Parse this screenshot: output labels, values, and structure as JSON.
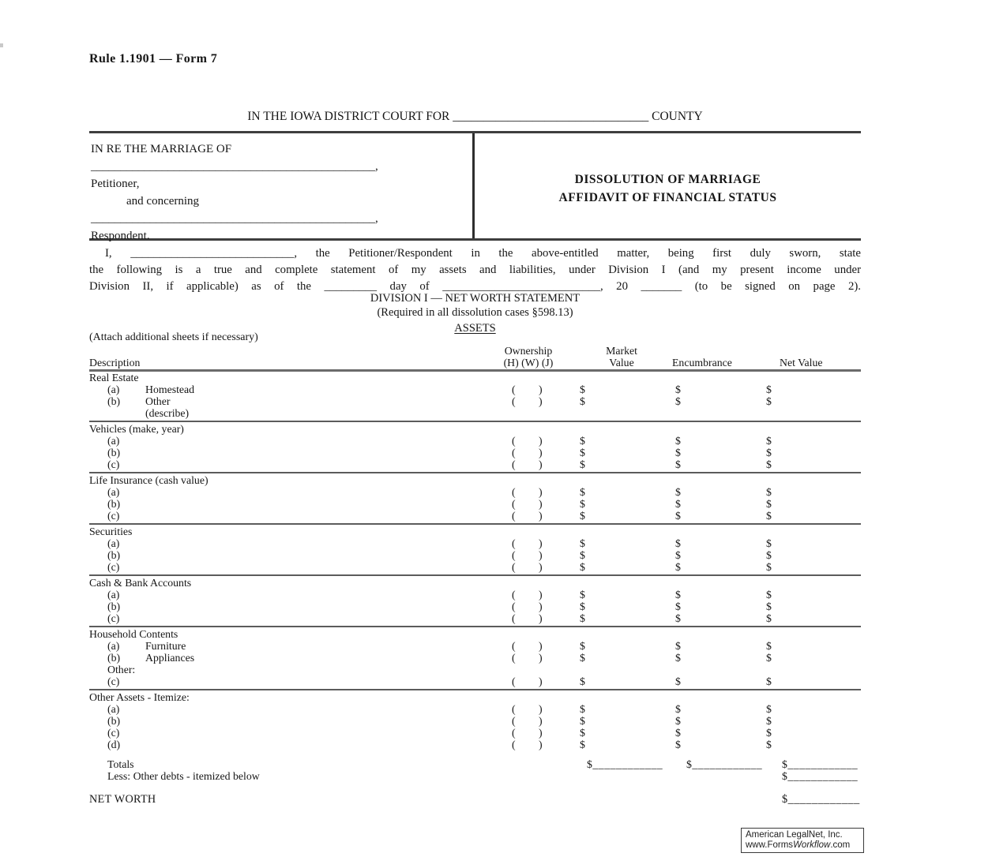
{
  "document": {
    "form_title": "Rule 1.1901 — Form 7",
    "court_heading": {
      "prefix": "IN THE IOWA DISTRICT COURT FOR",
      "blank": "________________________________",
      "suffix": "COUNTY"
    },
    "caption": {
      "in_re_line": "IN RE THE MARRIAGE OF",
      "petitioner_blank": "________________________________________________,",
      "petitioner_label": "Petitioner,",
      "and_concerning": "and concerning",
      "respondent_blank": "________________________________________________,",
      "respondent_label": "Respondent.",
      "case_title_line1": "DISSOLUTION OF MARRIAGE",
      "case_title_line2": "AFFIDAVIT OF FINANCIAL STATUS"
    },
    "oath_lines": [
      "I, ____________________________, the Petitioner/Respondent in the above-entitled matter, being first duly sworn, state",
      "the following is a true and complete statement of my assets and liabilities, under Division I (and my present income under",
      "Division II, if applicable) as of the _________ day of ___________________________, 20 _______ (to be signed on page 2)."
    ],
    "division_heading": "DIVISION I — NET WORTH STATEMENT",
    "division_subheading": "(Required in all dissolution cases §598.13)",
    "assets_heading": "ASSETS",
    "attach_note": "(Attach additional sheets if necessary)",
    "table": {
      "columns": {
        "description": "Description",
        "ownership_line1": "Ownership",
        "ownership_line2": "(H) (W) (J)",
        "market_line1": "Market",
        "market_line2": "Value",
        "encumbrance": "Encumbrance",
        "net_value": "Net Value"
      },
      "ownership_placeholder": "( )",
      "dollar": "$",
      "sections": [
        {
          "title": "Real Estate",
          "rows": [
            {
              "label": "(a)",
              "name": "Homestead",
              "fields": true
            },
            {
              "label": "(b)",
              "name": "Other",
              "fields": true
            },
            {
              "label": "",
              "name": "(describe)",
              "fields": false
            }
          ]
        },
        {
          "title": "Vehicles (make, year)",
          "rows": [
            {
              "label": "(a)",
              "name": "",
              "fields": true
            },
            {
              "label": "(b)",
              "name": "",
              "fields": true
            },
            {
              "label": "(c)",
              "name": "",
              "fields": true
            }
          ]
        },
        {
          "title": "Life Insurance (cash value)",
          "rows": [
            {
              "label": "(a)",
              "name": "",
              "fields": true
            },
            {
              "label": "(b)",
              "name": "",
              "fields": true
            },
            {
              "label": "(c)",
              "name": "",
              "fields": true
            }
          ]
        },
        {
          "title": "Securities",
          "rows": [
            {
              "label": "(a)",
              "name": "",
              "fields": true
            },
            {
              "label": "(b)",
              "name": "",
              "fields": true
            },
            {
              "label": "(c)",
              "name": "",
              "fields": true
            }
          ]
        },
        {
          "title": "Cash & Bank Accounts",
          "rows": [
            {
              "label": "(a)",
              "name": "",
              "fields": true
            },
            {
              "label": "(b)",
              "name": "",
              "fields": true
            },
            {
              "label": "(c)",
              "name": "",
              "fields": true
            }
          ]
        },
        {
          "title": "Household Contents",
          "rows": [
            {
              "label": "(a)",
              "name": "Furniture",
              "fields": true
            },
            {
              "label": "(b)",
              "name": "Appliances",
              "fields": true
            },
            {
              "label": "Other:",
              "name": "",
              "fields": false
            },
            {
              "label": "(c)",
              "name": "",
              "fields": true
            }
          ]
        },
        {
          "title": "Other Assets - Itemize:",
          "last": true,
          "rows": [
            {
              "label": "(a)",
              "name": "",
              "fields": true
            },
            {
              "label": "(b)",
              "name": "",
              "fields": true
            },
            {
              "label": "(c)",
              "name": "",
              "fields": true
            },
            {
              "label": "(d)",
              "name": "",
              "fields": true
            }
          ]
        }
      ],
      "totals_row": {
        "label": "Totals",
        "market_blank": "$____________",
        "encumbrance_blank": "$____________",
        "net_blank": "$____________"
      },
      "less_row": {
        "label": "Less:  Other debts - itemized below",
        "net_blank": "$____________"
      },
      "net_worth_row": {
        "label": "NET WORTH",
        "net_blank": "$____________"
      }
    },
    "footer_badge": {
      "line1": "American LegalNet, Inc.",
      "line2_prefix": "www.Forms",
      "line2_italic": "Workflow",
      "line2_suffix": ".com"
    }
  }
}
